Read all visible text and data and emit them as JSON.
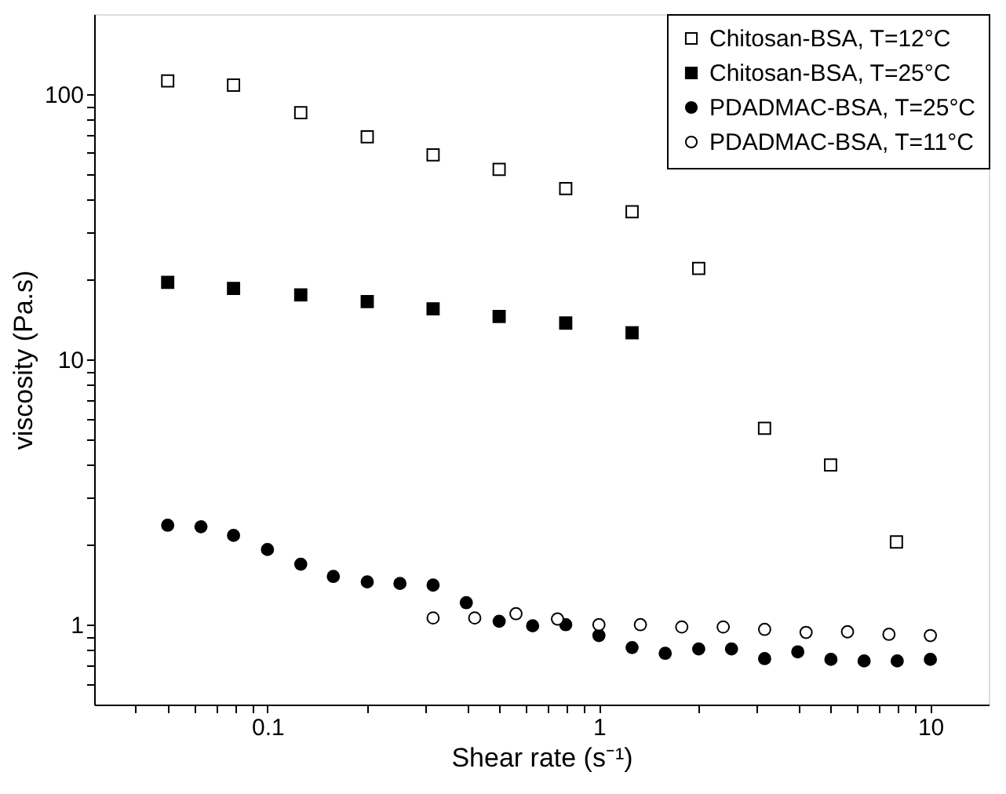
{
  "chart_data": {
    "type": "scatter",
    "xlabel": "Shear rate (s⁻¹)",
    "ylabel": "viscosity (Pa.s)",
    "log": "xy",
    "xlim": [
      0.03,
      15
    ],
    "ylim": [
      0.5,
      200
    ],
    "xticks": [
      {
        "value": 0.04,
        "label": null
      },
      {
        "value": 0.05,
        "label": null
      },
      {
        "value": 0.06,
        "label": null
      },
      {
        "value": 0.07,
        "label": null
      },
      {
        "value": 0.08,
        "label": null
      },
      {
        "value": 0.09,
        "label": null
      },
      0.1,
      {
        "value": 0.2,
        "label": null
      },
      {
        "value": 0.3,
        "label": null
      },
      {
        "value": 0.4,
        "label": null
      },
      {
        "value": 0.5,
        "label": null
      },
      {
        "value": 0.6,
        "label": null
      },
      {
        "value": 0.7,
        "label": null
      },
      {
        "value": 0.8,
        "label": null
      },
      {
        "value": 0.9,
        "label": null
      },
      1,
      {
        "value": 2,
        "label": null
      },
      {
        "value": 3,
        "label": null
      },
      {
        "value": 4,
        "label": null
      },
      {
        "value": 5,
        "label": null
      },
      {
        "value": 6,
        "label": null
      },
      {
        "value": 7,
        "label": null
      },
      {
        "value": 8,
        "label": null
      },
      {
        "value": 9,
        "label": null
      },
      10
    ],
    "yticks": [
      {
        "value": 0.6,
        "label": null
      },
      {
        "value": 0.7,
        "label": null
      },
      {
        "value": 0.8,
        "label": null
      },
      {
        "value": 0.9,
        "label": null
      },
      1,
      {
        "value": 2,
        "label": null
      },
      {
        "value": 3,
        "label": null
      },
      {
        "value": 4,
        "label": null
      },
      {
        "value": 5,
        "label": null
      },
      {
        "value": 6,
        "label": null
      },
      {
        "value": 7,
        "label": null
      },
      {
        "value": 8,
        "label": null
      },
      {
        "value": 9,
        "label": null
      },
      10,
      {
        "value": 20,
        "label": null
      },
      {
        "value": 30,
        "label": null
      },
      {
        "value": 40,
        "label": null
      },
      {
        "value": 50,
        "label": null
      },
      {
        "value": 60,
        "label": null
      },
      {
        "value": 70,
        "label": null
      },
      {
        "value": 80,
        "label": null
      },
      {
        "value": 90,
        "label": null
      },
      100
    ],
    "grid": false,
    "legend": "top right",
    "series": [
      {
        "name": "Chitosan-BSA, T=12°C",
        "color": "#ffffff",
        "marker": "square",
        "x": [
          0.05,
          0.079,
          0.126,
          0.2,
          0.316,
          0.5,
          0.794,
          1.259,
          2,
          3.16,
          5,
          7.9
        ],
        "values": [
          112,
          108,
          85,
          69,
          59,
          52,
          44,
          36,
          22,
          5.5,
          4.0,
          2.05
        ]
      },
      {
        "name": "Chitosan-BSA, T=25°C",
        "color": "#000000",
        "marker": "square",
        "x": [
          0.05,
          0.079,
          0.126,
          0.2,
          0.316,
          0.5,
          0.794,
          1.259
        ],
        "values": [
          19.5,
          18.5,
          17.5,
          16.5,
          15.5,
          14.5,
          13.7,
          12.6
        ]
      },
      {
        "name": "PDADMAC-BSA, T=25°C",
        "color": "#000000",
        "marker": "circle",
        "x": [
          0.05,
          0.063,
          0.079,
          0.1,
          0.126,
          0.158,
          0.2,
          0.251,
          0.316,
          0.398,
          0.5,
          0.631,
          0.794,
          1,
          1.259,
          1.585,
          2,
          2.512,
          3.162,
          3.981,
          5.012,
          6.31,
          7.943,
          10
        ],
        "values": [
          2.37,
          2.34,
          2.17,
          1.92,
          1.69,
          1.52,
          1.45,
          1.43,
          1.41,
          1.21,
          1.03,
          0.99,
          1.0,
          0.91,
          0.82,
          0.78,
          0.81,
          0.81,
          0.745,
          0.79,
          0.74,
          0.73,
          0.73,
          0.74
        ]
      },
      {
        "name": "PDADMAC-BSA, T=11°C",
        "color": "#ffffff",
        "marker": "circle",
        "x": [
          0.316,
          0.422,
          0.562,
          0.75,
          1,
          1.334,
          1.778,
          2.371,
          3.162,
          4.217,
          5.623,
          7.499,
          10
        ],
        "values": [
          1.06,
          1.06,
          1.1,
          1.05,
          1.0,
          1.0,
          0.98,
          0.98,
          0.96,
          0.935,
          0.94,
          0.92,
          0.91
        ]
      }
    ]
  }
}
